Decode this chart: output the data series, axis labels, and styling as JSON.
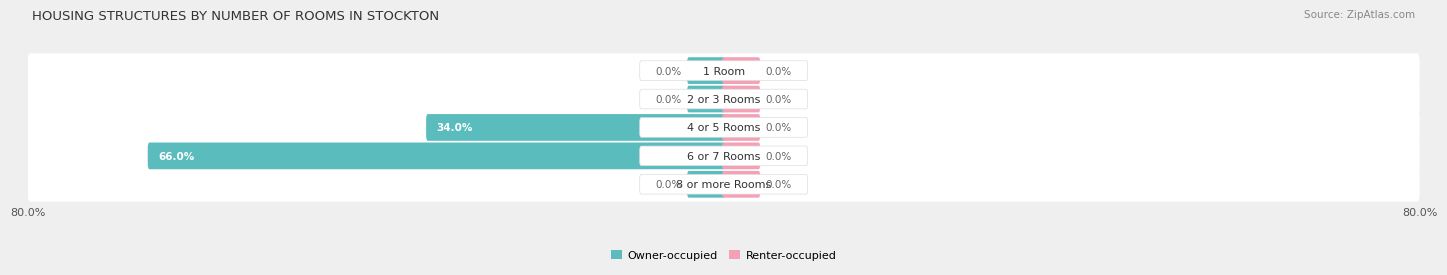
{
  "title": "HOUSING STRUCTURES BY NUMBER OF ROOMS IN STOCKTON",
  "source": "Source: ZipAtlas.com",
  "categories": [
    "1 Room",
    "2 or 3 Rooms",
    "4 or 5 Rooms",
    "6 or 7 Rooms",
    "8 or more Rooms"
  ],
  "owner_values": [
    0.0,
    0.0,
    34.0,
    66.0,
    0.0
  ],
  "renter_values": [
    0.0,
    0.0,
    0.0,
    0.0,
    0.0
  ],
  "owner_color": "#5bbcbe",
  "renter_color": "#f4a0b5",
  "axis_min": -80.0,
  "axis_max": 80.0,
  "bg_color": "#efefef",
  "row_bg_color": "#e8e8e8",
  "bar_height": 0.62,
  "min_bar_display": 4.0,
  "label_color_inside": "#ffffff",
  "label_color_outside": "#666666",
  "label_fontsize": 7.5,
  "title_fontsize": 9.5,
  "source_fontsize": 7.5,
  "cat_fontsize": 8,
  "legend_labels": [
    "Owner-occupied",
    "Renter-occupied"
  ],
  "legend_fontsize": 8
}
